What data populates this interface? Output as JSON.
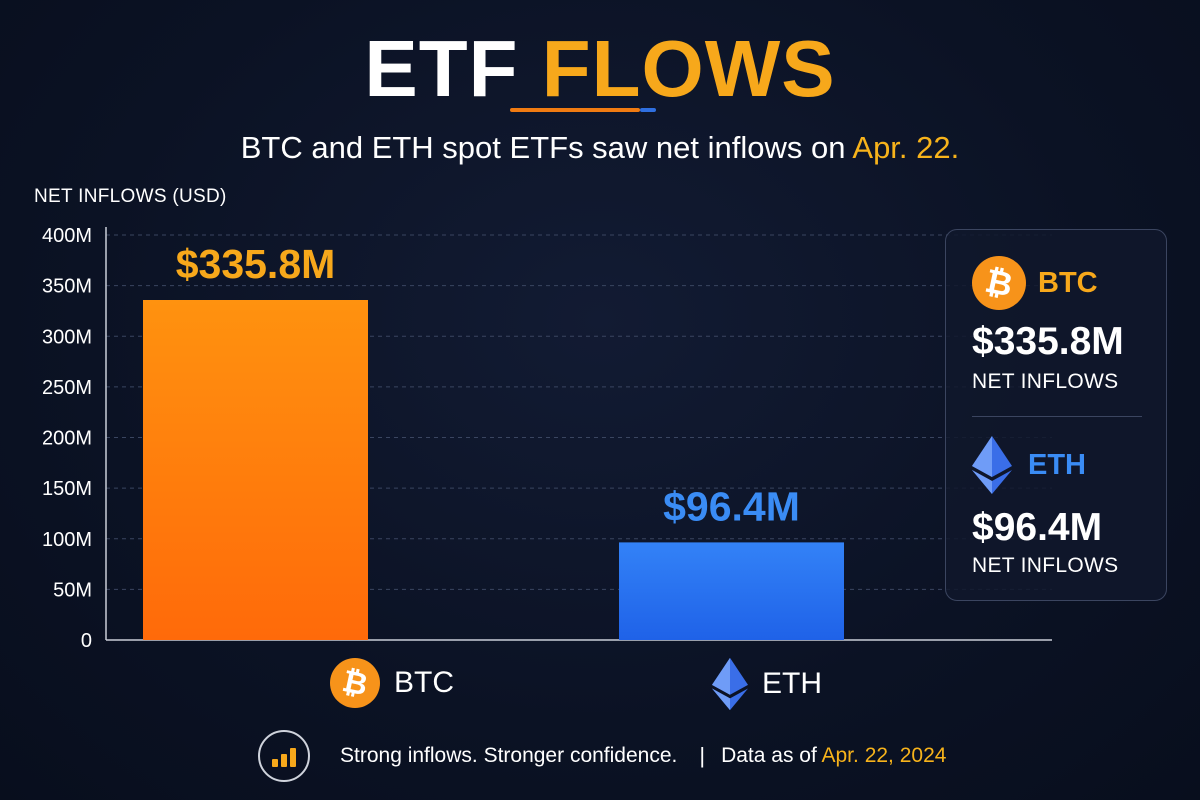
{
  "header": {
    "title_part1": "ETF",
    "title_part2": "FLOWS",
    "subtitle_main": "BTC and ETH spot ETFs saw net inflows on",
    "subtitle_date": "Apr. 22."
  },
  "chart_data": {
    "type": "bar",
    "title": "ETF FLOWS",
    "ylabel": "NET INFLOWS (USD)",
    "xlabel": "",
    "categories": [
      "BTC",
      "ETH"
    ],
    "values": [
      335.8,
      96.4
    ],
    "value_labels": [
      "$335.8M",
      "$96.4M"
    ],
    "ylim": [
      0,
      400
    ],
    "yticks": [
      0,
      50,
      100,
      150,
      200,
      250,
      300,
      350,
      400
    ],
    "ytick_labels": [
      "0",
      "50M",
      "100M",
      "150M",
      "200M",
      "250M",
      "300M",
      "350M",
      "400M"
    ],
    "unit": "million USD",
    "grid": true,
    "colors": [
      "#ff8a0f",
      "#2f7bf2"
    ],
    "label_colors": [
      "#f7a81b",
      "#3a8cf5"
    ]
  },
  "legend": {
    "btc_label": "BTC",
    "eth_label": "ETH",
    "btc_icon": "bitcoin-icon",
    "eth_icon": "ethereum-icon"
  },
  "panel": {
    "btc": {
      "label": "BTC",
      "amount": "$335.8M",
      "caption": "NET INFLOWS",
      "accent": "#f7a81b"
    },
    "eth": {
      "label": "ETH",
      "amount": "$96.4M",
      "caption": "NET INFLOWS",
      "accent": "#3a8cf5"
    }
  },
  "footer": {
    "tagline": "Strong inflows. Stronger confidence.",
    "separator": "|",
    "data_prefix": "Data as of",
    "data_date": "Apr. 22, 2024"
  },
  "colors": {
    "background": "#0b1224",
    "accent_orange": "#f7a81b",
    "accent_blue": "#2f7bf2"
  }
}
